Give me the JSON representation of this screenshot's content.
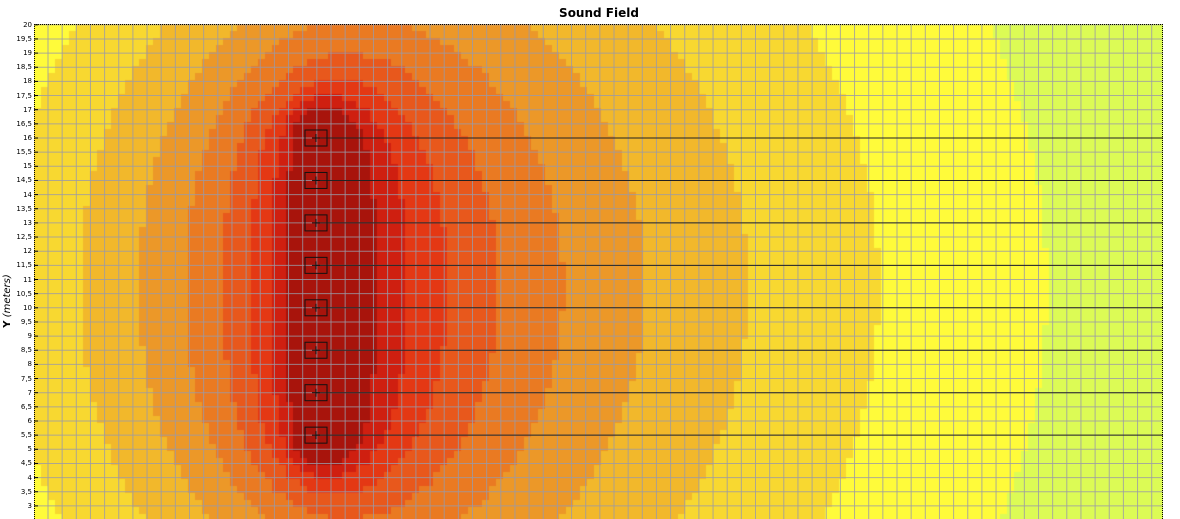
{
  "chart_data": {
    "type": "heatmap",
    "title": "Sound Field",
    "ylabel_axis": "Y",
    "ylabel_unit": "(meters)",
    "yrange": [
      2.5,
      20
    ],
    "yticks": [
      "20",
      "19,5",
      "19",
      "18,5",
      "18",
      "17,5",
      "17",
      "16,5",
      "16",
      "15,5",
      "15",
      "14,5",
      "14",
      "13,5",
      "13",
      "12,5",
      "12",
      "11,5",
      "11",
      "10,5",
      "10",
      "9,5",
      "9",
      "8,5",
      "8",
      "7,5",
      "7",
      "6,5",
      "6",
      "5,5",
      "5",
      "4,5",
      "4",
      "3,5",
      "3"
    ],
    "grid": true,
    "sources_y": [
      16,
      14.5,
      13,
      11.5,
      10,
      8.5,
      7,
      5.5
    ],
    "colormap": [
      "#7ef8ff",
      "#96fbb0",
      "#b8fb7a",
      "#dcfb55",
      "#fffb3a",
      "#f8d830",
      "#f2b82b",
      "#ec9828",
      "#ea7a22",
      "#e8581c",
      "#e43814",
      "#cf1f10",
      "#a8140c"
    ]
  }
}
